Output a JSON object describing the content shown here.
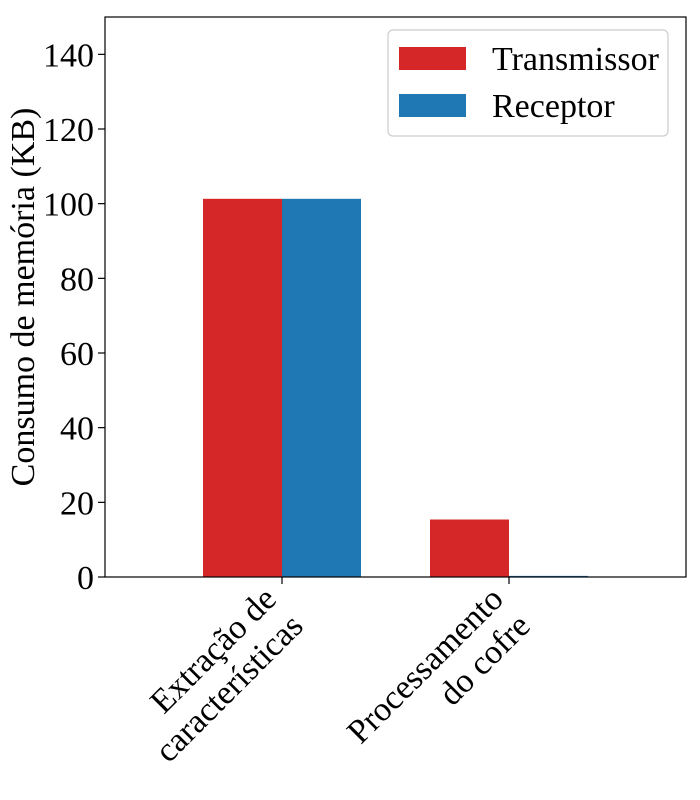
{
  "chart_data": {
    "type": "bar",
    "ylabel": "Consumo de memória (KB)",
    "ylim": [
      0,
      150
    ],
    "yticks": [
      0,
      20,
      40,
      60,
      80,
      100,
      120,
      140
    ],
    "grid": false,
    "legend_position": "top-right",
    "categories": [
      [
        "Extração de",
        "características"
      ],
      [
        "Processamento",
        "do cofre"
      ]
    ],
    "series": [
      {
        "name": "Transmissor",
        "color": "#d62728",
        "values": [
          101.3,
          15.4
        ]
      },
      {
        "name": "Receptor",
        "color": "#1f77b4",
        "values": [
          101.3,
          0.3
        ]
      }
    ]
  }
}
